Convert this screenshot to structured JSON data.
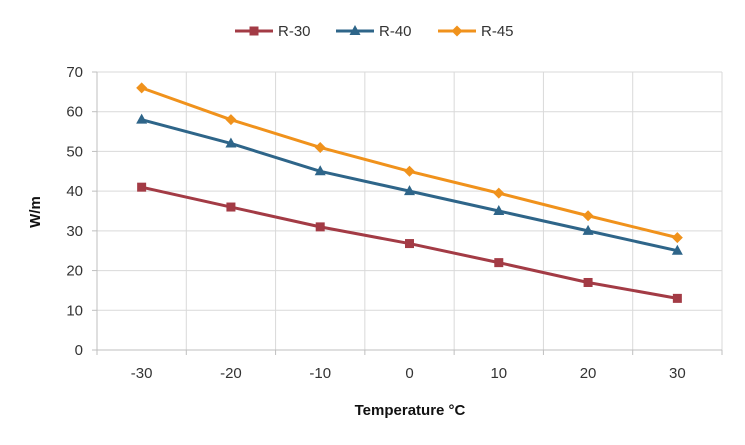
{
  "chart_data": {
    "type": "line",
    "title": "",
    "xlabel": "Temperature °C",
    "ylabel": "W/m",
    "categories": [
      "-30",
      "-20",
      "-10",
      "0",
      "10",
      "20",
      "30"
    ],
    "ylim": [
      0,
      70
    ],
    "yticks": [
      "0",
      "10",
      "20",
      "30",
      "40",
      "50",
      "60",
      "70"
    ],
    "grid": true,
    "legend_position": "top",
    "series": [
      {
        "name": "R-30",
        "color": "#a33b45",
        "marker": "square",
        "values": [
          41,
          36,
          31,
          26.8,
          22,
          17,
          13
        ]
      },
      {
        "name": "R-40",
        "color": "#2e6589",
        "marker": "triangle",
        "values": [
          58,
          52,
          45,
          40,
          35,
          30,
          25
        ]
      },
      {
        "name": "R-45",
        "color": "#f0921c",
        "marker": "diamond",
        "values": [
          66,
          58,
          51,
          45,
          39.5,
          33.8,
          28.3
        ]
      }
    ]
  }
}
